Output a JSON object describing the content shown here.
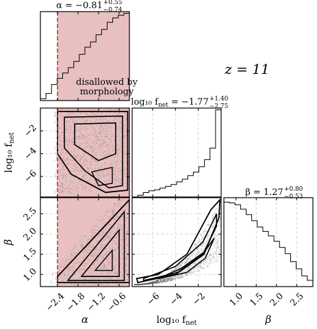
{
  "chart_data": {
    "type": "corner",
    "redshift_label": "z = 11",
    "parameters": [
      {
        "key": "alpha",
        "axis_label": "α",
        "title": "α = −0.81",
        "title_sup": "+0.55",
        "title_sub": "−0.74",
        "range": [
          -2.9,
          -0.3
        ],
        "ticks": [
          -2.4,
          -1.8,
          -1.2,
          -0.6
        ],
        "tick_labels": [
          "−2.4",
          "−1.8",
          "−1.2",
          "−0.6"
        ]
      },
      {
        "key": "log10_fnet",
        "axis_label": "log₁₀ f",
        "axis_label_sub": "net",
        "title": "log₁₀ f",
        "title_sub_text": "net",
        "title_value": " = −1.77",
        "title_sup": "+1.40",
        "title_sub": "−2.75",
        "range": [
          -7.8,
          0.0
        ],
        "ticks": [
          -6,
          -4,
          -2
        ],
        "tick_labels": [
          "−6",
          "−4",
          "−2"
        ]
      },
      {
        "key": "beta",
        "axis_label": "β",
        "title": "β = 1.27",
        "title_sup": "+0.80",
        "title_sub": "−0.53",
        "range": [
          0.7,
          2.9
        ],
        "ticks": [
          1.0,
          1.5,
          2.0,
          2.5
        ],
        "tick_labels": [
          "1.0",
          "1.5",
          "2.0",
          "2.5"
        ]
      }
    ],
    "disallowed": {
      "alpha_max": -2.4,
      "line_color": "#c0392b",
      "fill_color": "#e8c0c0",
      "label_line1": "disallowed by",
      "label_line2": "morphology",
      "label_color": "#c0392b"
    },
    "histograms": {
      "alpha": [
        0.02,
        0.08,
        0.18,
        0.25,
        0.31,
        0.37,
        0.44,
        0.52,
        0.6,
        0.66,
        0.74,
        0.8,
        0.88,
        0.93,
        0.96,
        0.98
      ],
      "log10_fnet": [
        0.0,
        0.02,
        0.05,
        0.07,
        0.08,
        0.1,
        0.12,
        0.14,
        0.17,
        0.2,
        0.24,
        0.28,
        0.34,
        0.42,
        0.55,
        0.98
      ],
      "beta": [
        0.95,
        0.94,
        0.92,
        0.87,
        0.81,
        0.74,
        0.67,
        0.62,
        0.57,
        0.51,
        0.44,
        0.37,
        0.28,
        0.2,
        0.12,
        0.07
      ]
    },
    "contour_levels": [
      "0.5σ",
      "1σ",
      "1.5σ",
      "2σ"
    ],
    "grid": true,
    "colors": {
      "line": "#000000",
      "grid": "#cfcfcf",
      "density": "#555555"
    }
  }
}
